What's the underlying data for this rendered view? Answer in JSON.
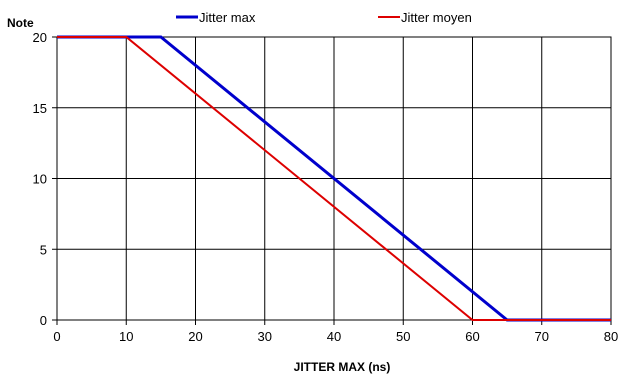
{
  "chart_data": {
    "type": "line",
    "title": "",
    "xlabel": "JITTER MAX  (ns)",
    "ylabel": "Note",
    "xlim": [
      0,
      80
    ],
    "ylim": [
      0,
      20
    ],
    "xticks": [
      0,
      10,
      20,
      30,
      40,
      50,
      60,
      70,
      80
    ],
    "yticks": [
      0,
      5,
      10,
      15,
      20
    ],
    "grid": true,
    "legend": "top",
    "series": [
      {
        "name": "Jitter max",
        "color": "#0000cc",
        "points": [
          [
            0,
            20
          ],
          [
            15,
            20
          ],
          [
            65,
            0
          ],
          [
            80,
            0
          ]
        ]
      },
      {
        "name": "Jitter moyen",
        "color": "#dd0000",
        "points": [
          [
            0,
            20
          ],
          [
            10,
            20
          ],
          [
            60,
            0
          ],
          [
            80,
            0
          ]
        ]
      }
    ]
  }
}
